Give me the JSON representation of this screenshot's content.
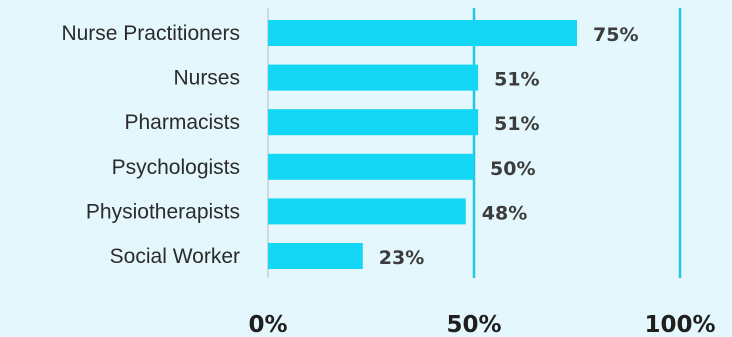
{
  "chart_data": {
    "type": "bar",
    "orientation": "horizontal",
    "categories": [
      "Nurse Practitioners",
      "Nurses",
      "Pharmacists",
      "Psychologists",
      "Physiotherapists",
      "Social Worker"
    ],
    "values": [
      75,
      51,
      51,
      50,
      48,
      23
    ],
    "value_labels": [
      "75%",
      "51%",
      "51%",
      "50%",
      "48%",
      "23%"
    ],
    "title": "",
    "xlabel": "",
    "ylabel": "",
    "xlim": [
      0,
      100
    ],
    "x_ticks": [
      0,
      50,
      100
    ],
    "x_tick_labels": [
      "0%",
      "50%",
      "100%"
    ],
    "grid": true,
    "colors": {
      "background": "#e3f7fc",
      "bar": "#14d6f5",
      "gridline": "#22c7e3",
      "zero_axis": "#cfd8dc"
    }
  }
}
